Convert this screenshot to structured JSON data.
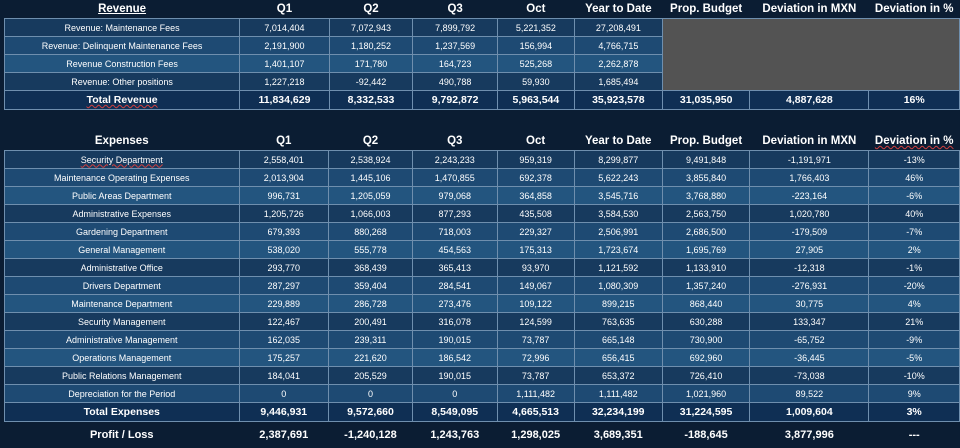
{
  "revenue": {
    "headers": [
      "Revenue",
      "Q1",
      "Q2",
      "Q3",
      "Oct",
      "Year to Date",
      "Prop. Budget",
      "Deviation in MXN",
      "Deviation in %"
    ],
    "rows": [
      [
        "Revenue: Maintenance Fees",
        "7,014,404",
        "7,072,943",
        "7,899,792",
        "5,221,352",
        "27,208,491"
      ],
      [
        "Revenue: Delinquent Maintenance Fees",
        "2,191,900",
        "1,180,252",
        "1,237,569",
        "156,994",
        "4,766,715"
      ],
      [
        "Revenue Construction Fees",
        "1,401,107",
        "171,780",
        "164,723",
        "525,268",
        "2,262,878"
      ],
      [
        "Revenue: Other positions",
        "1,227,218",
        "-92,442",
        "490,788",
        "59,930",
        "1,685,494"
      ]
    ],
    "total": [
      "Total Revenue",
      "11,834,629",
      "8,332,533",
      "9,792,872",
      "5,963,544",
      "35,923,578",
      "31,035,950",
      "4,887,628",
      "16%"
    ]
  },
  "expenses": {
    "headers": [
      "Expenses",
      "Q1",
      "Q2",
      "Q3",
      "Oct",
      "Year to Date",
      "Prop. Budget",
      "Deviation in MXN",
      "Deviation in %"
    ],
    "rows": [
      [
        "Security Department",
        "2,558,401",
        "2,538,924",
        "2,243,233",
        "959,319",
        "8,299,877",
        "9,491,848",
        "-1,191,971",
        "-13%"
      ],
      [
        "Maintenance Operating Expenses",
        "2,013,904",
        "1,445,106",
        "1,470,855",
        "692,378",
        "5,622,243",
        "3,855,840",
        "1,766,403",
        "46%"
      ],
      [
        "Public Areas Department",
        "996,731",
        "1,205,059",
        "979,068",
        "364,858",
        "3,545,716",
        "3,768,880",
        "-223,164",
        "-6%"
      ],
      [
        "Administrative Expenses",
        "1,205,726",
        "1,066,003",
        "877,293",
        "435,508",
        "3,584,530",
        "2,563,750",
        "1,020,780",
        "40%"
      ],
      [
        "Gardening Department",
        "679,393",
        "880,268",
        "718,003",
        "229,327",
        "2,506,991",
        "2,686,500",
        "-179,509",
        "-7%"
      ],
      [
        "General Management",
        "538,020",
        "555,778",
        "454,563",
        "175,313",
        "1,723,674",
        "1,695,769",
        "27,905",
        "2%"
      ],
      [
        "Administrative Office",
        "293,770",
        "368,439",
        "365,413",
        "93,970",
        "1,121,592",
        "1,133,910",
        "-12,318",
        "-1%"
      ],
      [
        "Drivers Department",
        "287,297",
        "359,404",
        "284,541",
        "149,067",
        "1,080,309",
        "1,357,240",
        "-276,931",
        "-20%"
      ],
      [
        "Maintenance Department",
        "229,889",
        "286,728",
        "273,476",
        "109,122",
        "899,215",
        "868,440",
        "30,775",
        "4%"
      ],
      [
        "Security Management",
        "122,467",
        "200,491",
        "316,078",
        "124,599",
        "763,635",
        "630,288",
        "133,347",
        "21%"
      ],
      [
        "Administrative Management",
        "162,035",
        "239,311",
        "190,015",
        "73,787",
        "665,148",
        "730,900",
        "-65,752",
        "-9%"
      ],
      [
        "Operations Management",
        "175,257",
        "221,620",
        "186,542",
        "72,996",
        "656,415",
        "692,960",
        "-36,445",
        "-5%"
      ],
      [
        "Public Relations Management",
        "184,041",
        "205,529",
        "190,015",
        "73,787",
        "653,372",
        "726,410",
        "-73,038",
        "-10%"
      ],
      [
        "Depreciation for the Period",
        "0",
        "0",
        "0",
        "1,111,482",
        "1,111,482",
        "1,021,960",
        "89,522",
        "9%"
      ]
    ],
    "total": [
      "Total Expenses",
      "9,446,931",
      "9,572,660",
      "8,549,095",
      "4,665,513",
      "32,234,199",
      "31,224,595",
      "1,009,604",
      "3%"
    ]
  },
  "profit": [
    "Profit / Loss",
    "2,387,691",
    "-1,240,128",
    "1,243,763",
    "1,298,025",
    "3,689,351",
    "-188,645",
    "3,877,996",
    "---"
  ]
}
